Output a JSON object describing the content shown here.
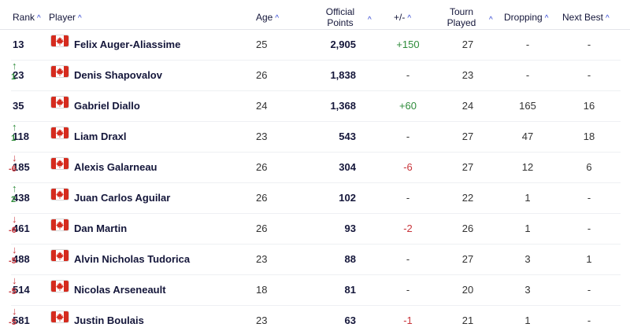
{
  "header": {
    "rank": "Rank",
    "player": "Player",
    "age": "Age",
    "points_line1": "Official",
    "points_line2": "Points",
    "diff": "+/-",
    "tourn_line1": "Tourn",
    "tourn_line2": "Played",
    "dropping": "Dropping",
    "next_best": "Next Best",
    "sort_icon": "^"
  },
  "colors": {
    "up": "#2e8b3a",
    "down": "#c8343a",
    "accent": "#2b3fcf",
    "flag_red": "#d52b1e"
  },
  "rows": [
    {
      "rank": "13",
      "move_dir": "",
      "move_arrow": "",
      "move": "",
      "country": "CAN",
      "player": "Felix Auger-Aliassime",
      "age": "25",
      "points": "2,905",
      "diff": "+150",
      "diff_sign": "pos",
      "tourn": "27",
      "dropping": "-",
      "next_best": "-"
    },
    {
      "rank": "23",
      "move_dir": "up",
      "move_arrow": "↑",
      "move": "1",
      "country": "CAN",
      "player": "Denis Shapovalov",
      "age": "26",
      "points": "1,838",
      "diff": "-",
      "diff_sign": "",
      "tourn": "23",
      "dropping": "-",
      "next_best": "-"
    },
    {
      "rank": "35",
      "move_dir": "",
      "move_arrow": "",
      "move": "",
      "country": "CAN",
      "player": "Gabriel Diallo",
      "age": "24",
      "points": "1,368",
      "diff": "+60",
      "diff_sign": "pos",
      "tourn": "24",
      "dropping": "165",
      "next_best": "16"
    },
    {
      "rank": "118",
      "move_dir": "up",
      "move_arrow": "↑",
      "move": "1",
      "country": "CAN",
      "player": "Liam Draxl",
      "age": "23",
      "points": "543",
      "diff": "-",
      "diff_sign": "",
      "tourn": "27",
      "dropping": "47",
      "next_best": "18"
    },
    {
      "rank": "185",
      "move_dir": "down",
      "move_arrow": "↓",
      "move": "-6",
      "country": "CAN",
      "player": "Alexis Galarneau",
      "age": "26",
      "points": "304",
      "diff": "-6",
      "diff_sign": "neg",
      "tourn": "27",
      "dropping": "12",
      "next_best": "6"
    },
    {
      "rank": "438",
      "move_dir": "up",
      "move_arrow": "↑",
      "move": "2",
      "country": "CAN",
      "player": "Juan Carlos Aguilar",
      "age": "26",
      "points": "102",
      "diff": "-",
      "diff_sign": "",
      "tourn": "22",
      "dropping": "1",
      "next_best": "-"
    },
    {
      "rank": "461",
      "move_dir": "down",
      "move_arrow": "↓",
      "move": "-6",
      "country": "CAN",
      "player": "Dan Martin",
      "age": "26",
      "points": "93",
      "diff": "-2",
      "diff_sign": "neg",
      "tourn": "26",
      "dropping": "1",
      "next_best": "-"
    },
    {
      "rank": "488",
      "move_dir": "down",
      "move_arrow": "↓",
      "move": "-5",
      "country": "CAN",
      "player": "Alvin Nicholas Tudorica",
      "age": "23",
      "points": "88",
      "diff": "-",
      "diff_sign": "",
      "tourn": "27",
      "dropping": "3",
      "next_best": "1"
    },
    {
      "rank": "514",
      "move_dir": "down",
      "move_arrow": "↓",
      "move": "-5",
      "country": "CAN",
      "player": "Nicolas Arseneault",
      "age": "18",
      "points": "81",
      "diff": "-",
      "diff_sign": "",
      "tourn": "20",
      "dropping": "3",
      "next_best": "-"
    },
    {
      "rank": "581",
      "move_dir": "down",
      "move_arrow": "↓",
      "move": "-5",
      "country": "CAN",
      "player": "Justin Boulais",
      "age": "23",
      "points": "63",
      "diff": "-1",
      "diff_sign": "neg",
      "tourn": "21",
      "dropping": "1",
      "next_best": "-"
    }
  ]
}
